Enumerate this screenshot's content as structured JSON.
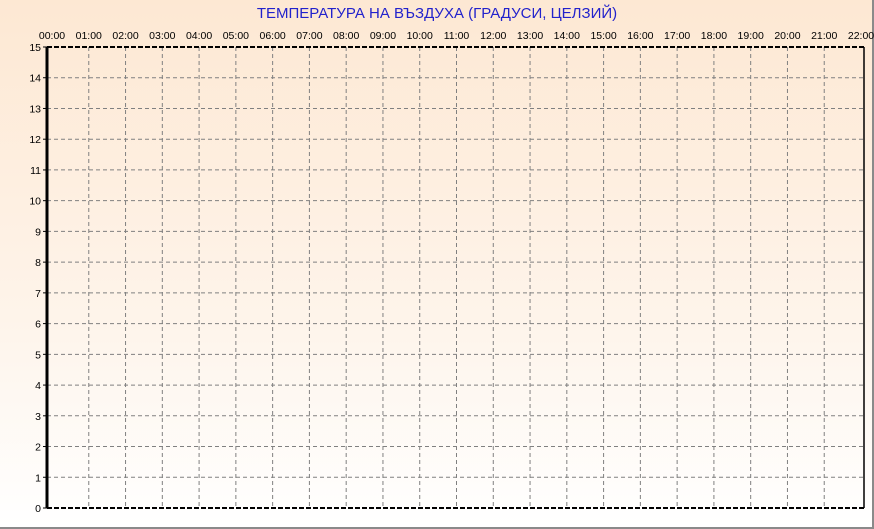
{
  "chart_data": {
    "type": "line",
    "title": "ТЕМПЕРАТУРА НА ВЪЗДУХА  (ГРАДУСИ, ЦЕЛЗИЙ)",
    "xlabel": "",
    "ylabel": "",
    "x_ticks": [
      "00:00",
      "01:00",
      "02:00",
      "03:00",
      "04:00",
      "05:00",
      "06:00",
      "07:00",
      "08:00",
      "09:00",
      "10:00",
      "11:00",
      "12:00",
      "13:00",
      "14:00",
      "15:00",
      "16:00",
      "17:00",
      "18:00",
      "19:00",
      "20:00",
      "21:00",
      "22:00"
    ],
    "x_axis_position": "top",
    "y_ticks": [
      0,
      1,
      2,
      3,
      4,
      5,
      6,
      7,
      8,
      9,
      10,
      11,
      12,
      13,
      14,
      15
    ],
    "ylim": [
      0,
      15
    ],
    "grid": true,
    "grid_style": "dashed",
    "series": [],
    "colors": {
      "title": "#2222cc",
      "background_top": "#fde8d3",
      "background_bottom": "#ffffff",
      "grid": "#808080"
    }
  }
}
